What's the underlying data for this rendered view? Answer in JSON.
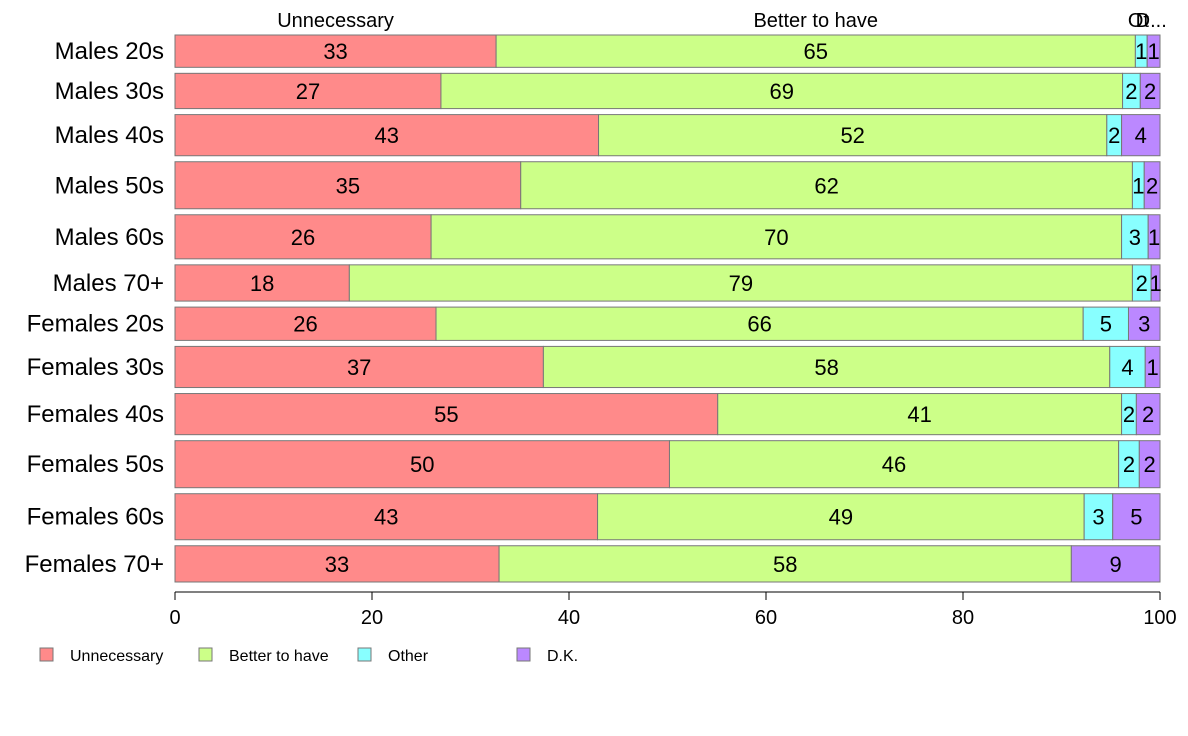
{
  "chart_data": {
    "type": "bar",
    "orientation": "horizontal",
    "stacked": true,
    "categories": [
      "Males 20s",
      "Males 30s",
      "Males 40s",
      "Males 50s",
      "Males 60s",
      "Males 70+",
      "Females 20s",
      "Females 30s",
      "Females 40s",
      "Females 50s",
      "Females 60s",
      "Females 70+"
    ],
    "row_weights": [
      33,
      36,
      42,
      48,
      45,
      37,
      34,
      42,
      42,
      48,
      47,
      37
    ],
    "series": [
      {
        "name": "Unnecessary",
        "color": "#ff8a8a",
        "values": [
          32.6,
          27.0,
          43.0,
          35.1,
          26.0,
          17.7,
          26.5,
          37.4,
          55.1,
          50.2,
          42.9,
          32.9
        ],
        "labels": [
          "33",
          "27",
          "43",
          "35",
          "26",
          "18",
          "26",
          "37",
          "55",
          "50",
          "43",
          "33"
        ]
      },
      {
        "name": "Better to have",
        "color": "#ccff88",
        "values": [
          64.9,
          69.2,
          51.6,
          62.1,
          70.1,
          79.5,
          65.7,
          57.5,
          41.0,
          45.6,
          49.4,
          58.1
        ],
        "labels": [
          "65",
          "69",
          "52",
          "62",
          "70",
          "79",
          "66",
          "58",
          "41",
          "46",
          "49",
          "58"
        ]
      },
      {
        "name": "Other",
        "color": "#88ffff",
        "values": [
          1.2,
          1.8,
          1.5,
          1.2,
          2.7,
          1.9,
          4.6,
          3.6,
          1.5,
          2.1,
          2.9,
          0.0
        ],
        "labels": [
          "1",
          "2",
          "2",
          "1",
          "3",
          "2",
          "5",
          "4",
          "2",
          "2",
          "3",
          ""
        ]
      },
      {
        "name": "D.K.",
        "color": "#bb88ff",
        "values": [
          1.3,
          2.0,
          3.9,
          1.6,
          1.2,
          0.9,
          3.2,
          1.5,
          2.4,
          2.1,
          4.8,
          9.0
        ],
        "labels": [
          "1",
          "2",
          "4",
          "2",
          "1",
          "1",
          "3",
          "1",
          "2",
          "2",
          "5",
          "9"
        ]
      }
    ],
    "column_headers": [
      "Unnecessary",
      "Better to have",
      "Ot",
      "D..."
    ],
    "x_ticks": [
      0,
      20,
      40,
      60,
      80,
      100
    ],
    "xlim": [
      0,
      100
    ],
    "xlabel": "",
    "ylabel": "",
    "title": "",
    "grid": false,
    "legend_position": "bottom-left"
  }
}
